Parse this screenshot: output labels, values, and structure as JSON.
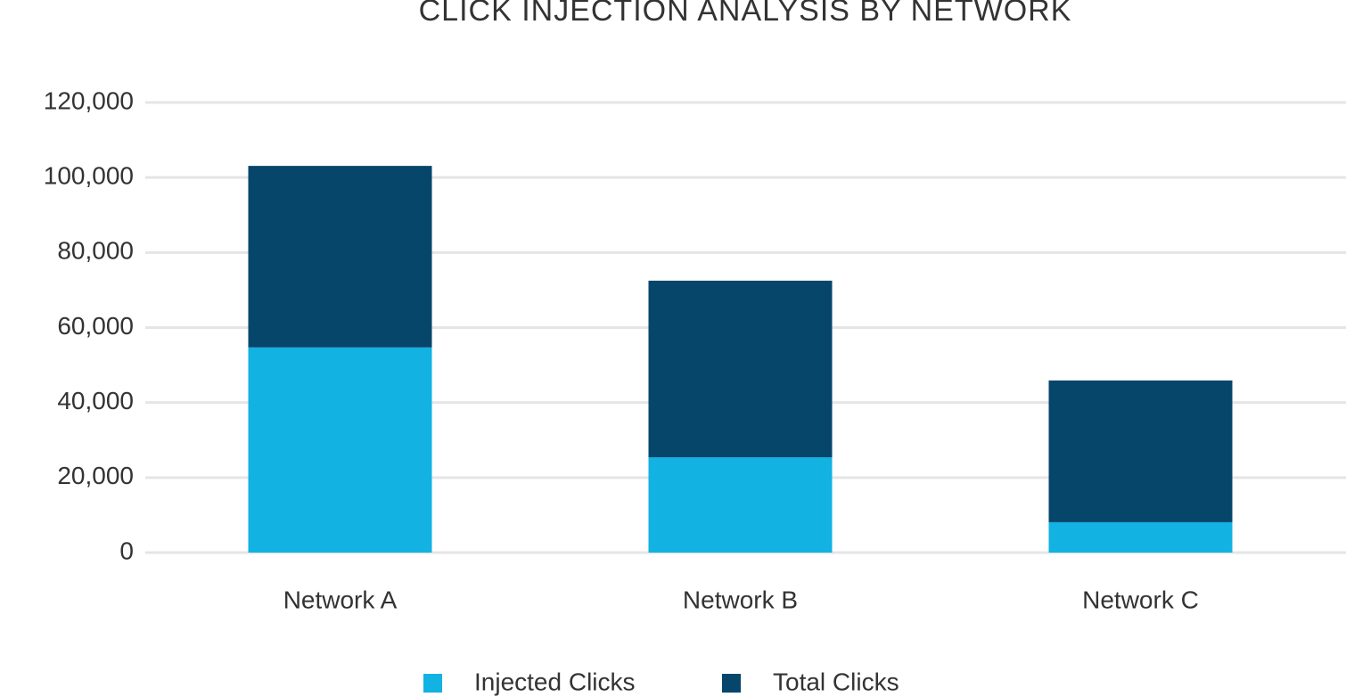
{
  "chart_data": {
    "type": "stacked-bar",
    "title": "CLICK INJECTION ANALYSIS BY NETWORK",
    "categories": [
      "Network A",
      "Network B",
      "Network C"
    ],
    "series": [
      {
        "name": "Injected Clicks",
        "color": "#12b2e3",
        "values": [
          54700,
          25400,
          8100
        ]
      },
      {
        "name": "Total Clicks",
        "color": "#07466b",
        "values": [
          48400,
          47100,
          37800
        ]
      }
    ],
    "ylim": [
      0,
      120000
    ],
    "yticks": [
      0,
      {
        "value": 20000,
        "label": "20,000"
      },
      {
        "value": 40000,
        "label": "40,000"
      },
      {
        "value": 60000,
        "label": "60,000"
      },
      {
        "value": 80000,
        "label": "80,000"
      },
      {
        "value": 100000,
        "label": "100,000"
      },
      {
        "value": 120000,
        "label": "120,000"
      }
    ],
    "grid": true,
    "legend": "bottom"
  }
}
